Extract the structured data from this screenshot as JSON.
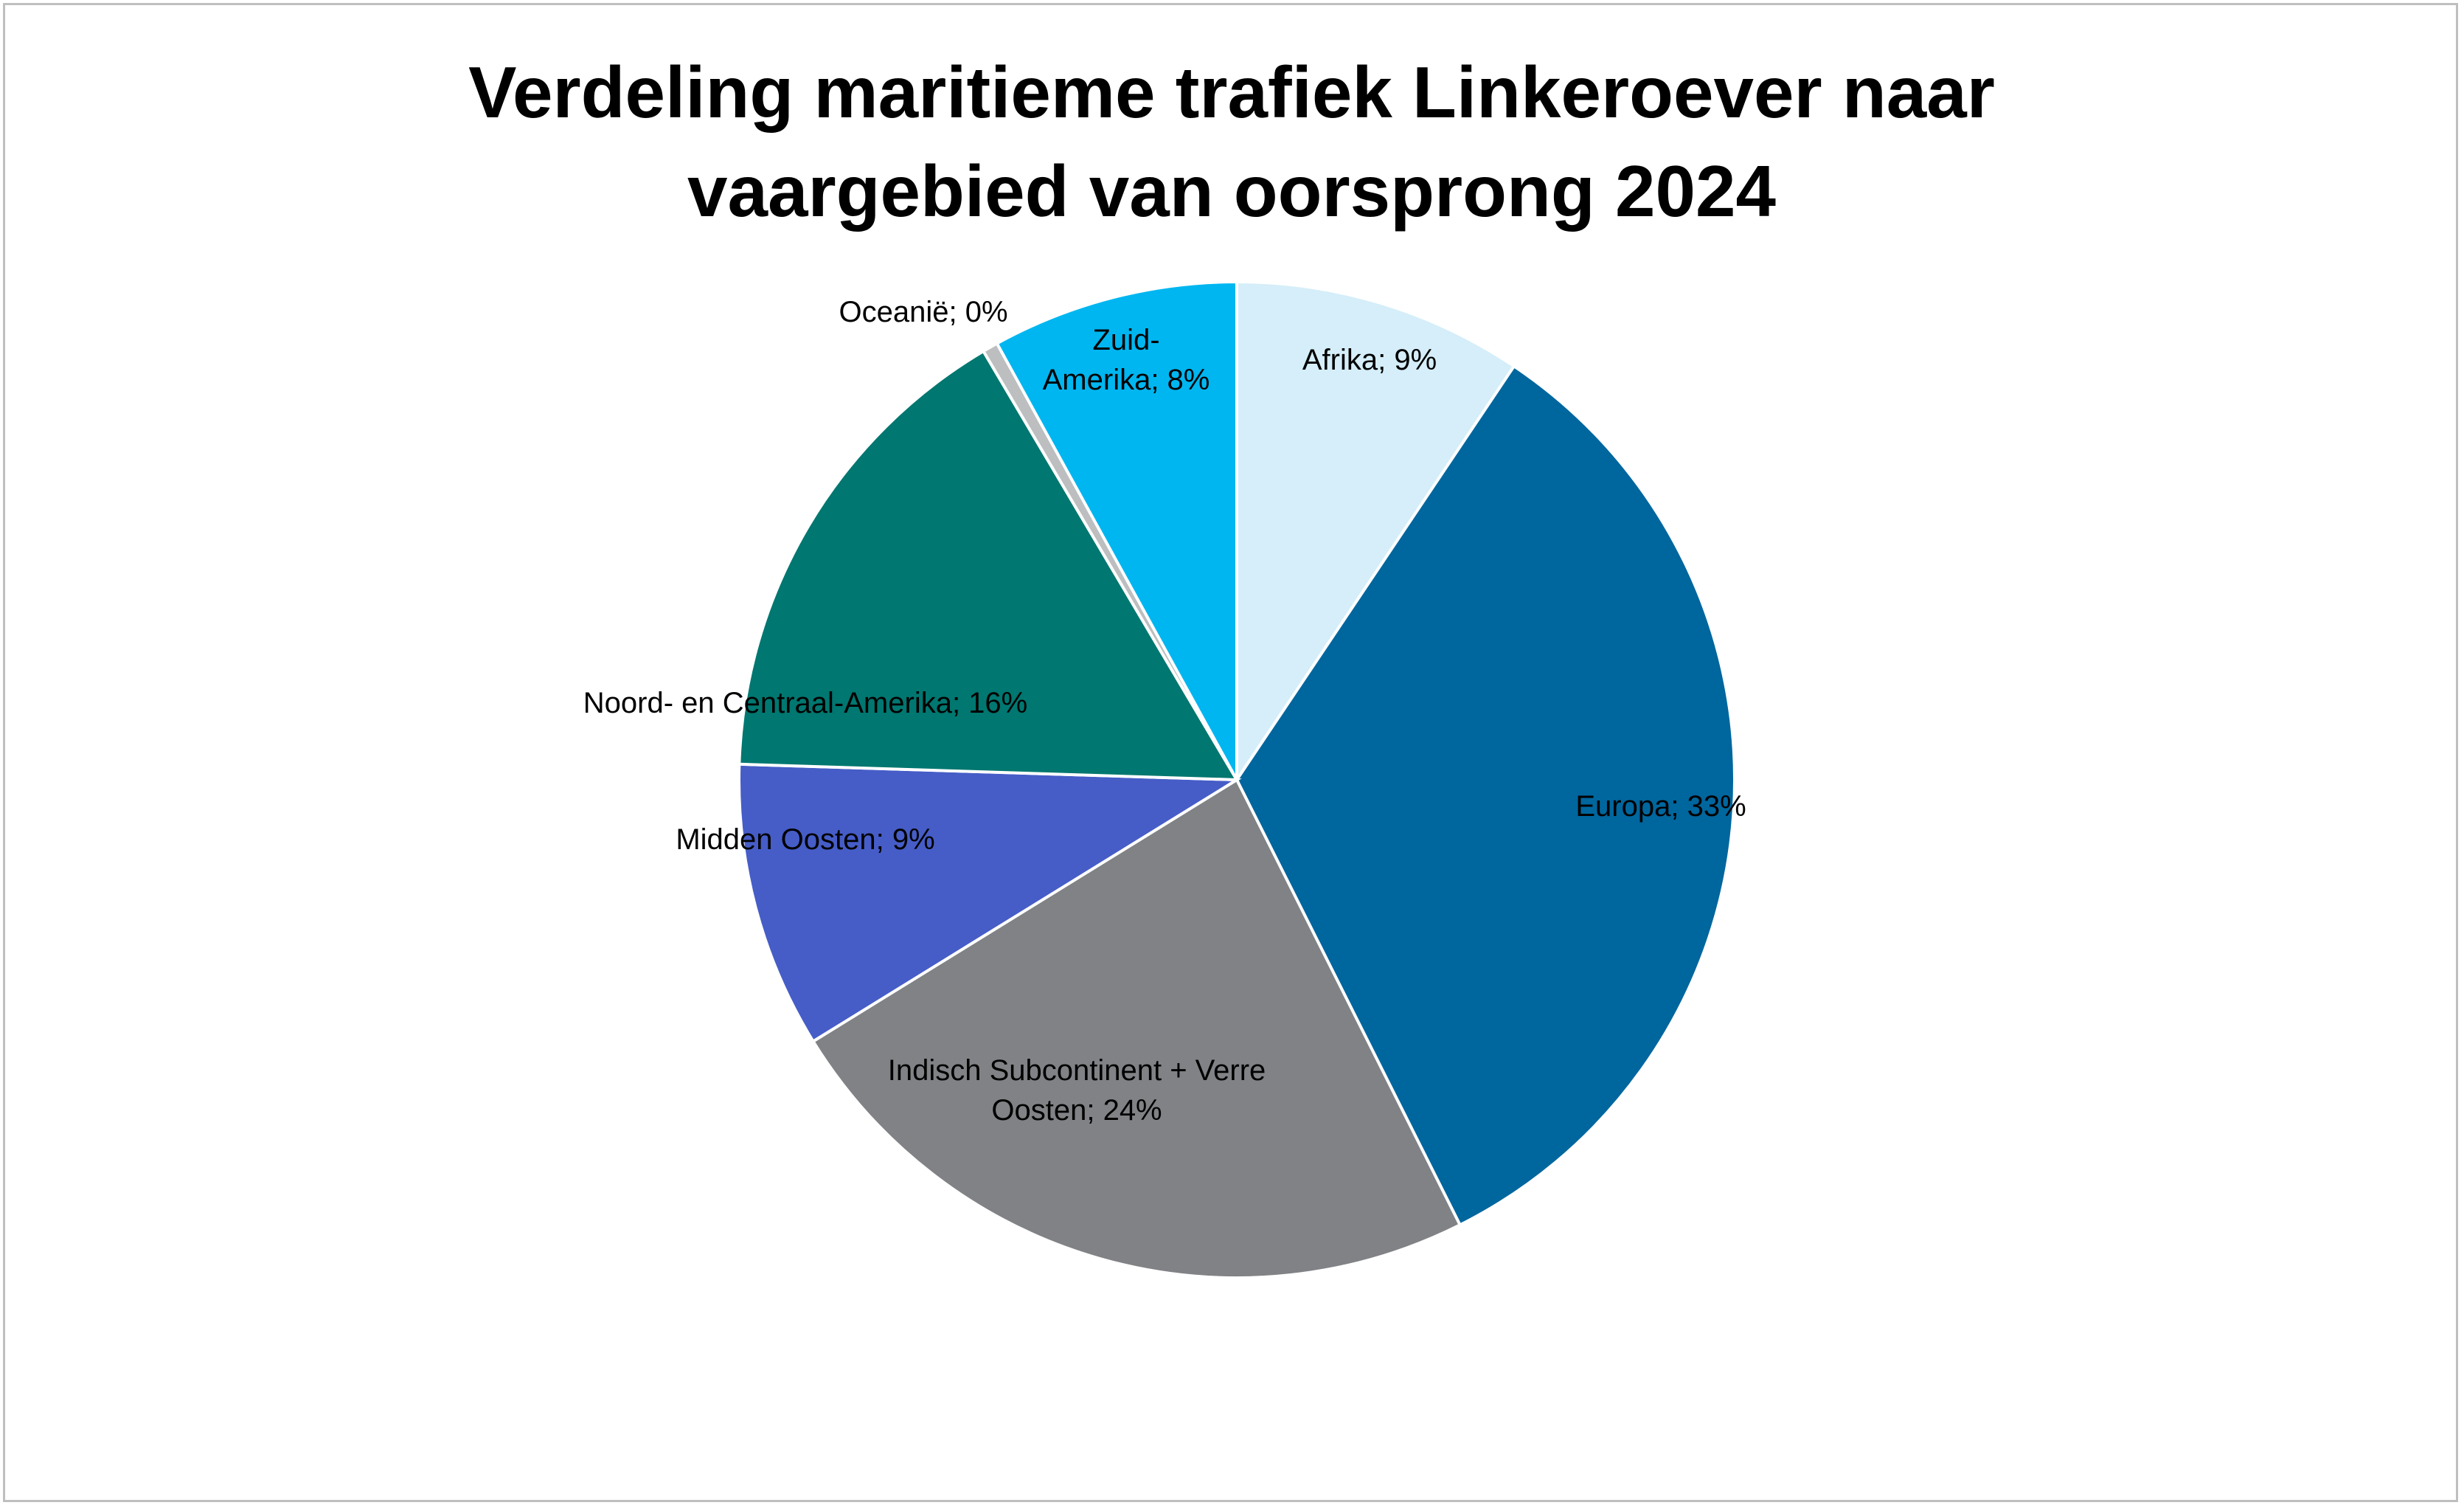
{
  "chart_data": {
    "type": "pie",
    "title_lines": [
      "Verdeling maritieme trafiek Linkeroever naar",
      "vaargebied van oorsprong 2024"
    ],
    "start_angle_deg": 0,
    "direction": "clockwise",
    "slices": [
      {
        "label": "Afrika; 9%",
        "label_lines": [
          "Afrika; 9%"
        ],
        "value": 9.4,
        "color": "#d5eef9"
      },
      {
        "label": "Europa; 33%",
        "label_lines": [
          "Europa; 33%"
        ],
        "value": 33.2,
        "color": "#00669e"
      },
      {
        "label": "Indisch Subcontinent + Verre Oosten; 24%",
        "label_lines": [
          "Indisch Subcontinent + Verre",
          "Oosten; 24%"
        ],
        "value": 23.6,
        "color": "#808285"
      },
      {
        "label": "Midden Oosten; 9%",
        "label_lines": [
          "Midden Oosten; 9%"
        ],
        "value": 9.3,
        "color": "#465dc7"
      },
      {
        "label": "Noord- en Centraal-Amerika; 16%",
        "label_lines": [
          "Noord- en Centraal-Amerika; 16%"
        ],
        "value": 16.0,
        "color": "#007770"
      },
      {
        "label": "Oceanië; 0%",
        "label_lines": [
          "Oceanië; 0%"
        ],
        "value": 0.5,
        "color": "#bcbec0"
      },
      {
        "label": "Zuid-Amerika; 8%",
        "label_lines": [
          "Zuid-",
          "Amerika; 8%"
        ],
        "value": 8.0,
        "color": "#00b6f0"
      }
    ]
  }
}
